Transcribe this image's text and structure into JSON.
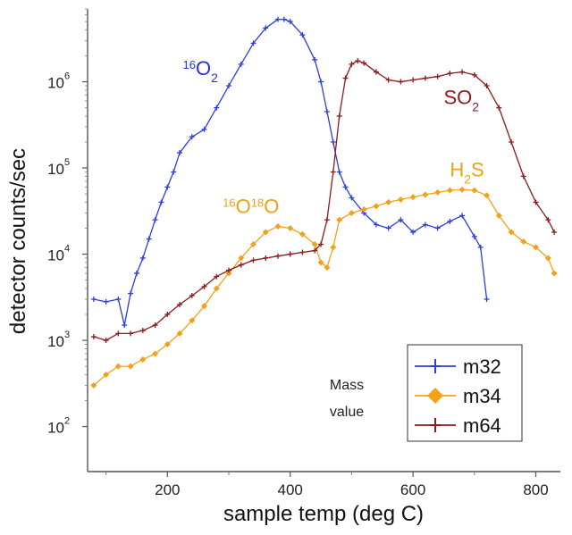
{
  "chart_data": {
    "type": "line",
    "title": "",
    "xlabel": "sample temp (deg C)",
    "ylabel": "detector counts/sec",
    "xlim": [
      70,
      840
    ],
    "ylim": [
      30,
      7000000
    ],
    "yscale": "log",
    "x_ticks": [
      200,
      400,
      600,
      800
    ],
    "x_tick_labels": [
      "200",
      "400",
      "600",
      "800"
    ],
    "y_ticks": [
      100,
      1000,
      10000,
      100000,
      1000000
    ],
    "y_tick_labels": [
      {
        "base": "10",
        "exp": "2"
      },
      {
        "base": "10",
        "exp": "3"
      },
      {
        "base": "10",
        "exp": "4"
      },
      {
        "base": "10",
        "exp": "5"
      },
      {
        "base": "10",
        "exp": "6"
      }
    ],
    "legend": {
      "placement": "bottom-right",
      "entries": [
        {
          "label": "m32",
          "series": "m32"
        },
        {
          "label": "m34",
          "series": "m34"
        },
        {
          "label": "m64",
          "series": "m64"
        }
      ]
    },
    "annotations": [
      {
        "text": "Mass",
        "x": 390,
        "y": 450
      },
      {
        "text": "value",
        "x": 390,
        "y": 150
      }
    ],
    "species_labels": [
      {
        "parts": [
          {
            "t": "16",
            "s": "sup"
          },
          {
            "t": "O",
            "s": ""
          },
          {
            "t": "2",
            "s": "sub"
          }
        ],
        "color": "#2233dd",
        "x": 225,
        "y": 1200000
      },
      {
        "parts": [
          {
            "t": "SO",
            "s": ""
          },
          {
            "t": "2",
            "s": "sub"
          }
        ],
        "color": "#8b1a1a",
        "x": 650,
        "y": 550000
      },
      {
        "parts": [
          {
            "t": "H",
            "s": ""
          },
          {
            "t": "2",
            "s": "sub"
          },
          {
            "t": "S",
            "s": ""
          }
        ],
        "color": "#f0a010",
        "x": 660,
        "y": 80000
      },
      {
        "parts": [
          {
            "t": "16",
            "s": "sup"
          },
          {
            "t": "O",
            "s": ""
          },
          {
            "t": "18",
            "s": "sup"
          },
          {
            "t": "O",
            "s": ""
          }
        ],
        "color": "#f0a010",
        "x": 290,
        "y": 30000
      }
    ],
    "series": [
      {
        "name": "m32",
        "color": "#2a3fe0",
        "marker": "plus",
        "x": [
          80,
          100,
          120,
          130,
          140,
          150,
          160,
          170,
          180,
          190,
          200,
          210,
          220,
          240,
          260,
          280,
          300,
          320,
          340,
          360,
          380,
          390,
          400,
          420,
          440,
          450,
          460,
          470,
          480,
          490,
          500,
          520,
          540,
          560,
          580,
          600,
          620,
          640,
          660,
          680,
          700,
          710,
          720
        ],
        "y": [
          3000,
          2800,
          3000,
          1500,
          3500,
          6000,
          9000,
          15000,
          25000,
          40000,
          60000,
          90000,
          150000,
          230000,
          280000,
          500000,
          900000,
          1600000,
          2800000,
          4200000,
          5300000,
          5300000,
          5000000,
          3500000,
          1800000,
          1000000,
          450000,
          200000,
          90000,
          60000,
          45000,
          30000,
          22000,
          20000,
          25000,
          18000,
          22000,
          20000,
          24000,
          28000,
          16000,
          12000,
          3000
        ]
      },
      {
        "name": "m34",
        "color": "#f5a01a",
        "marker": "diamond",
        "x": [
          80,
          100,
          120,
          140,
          160,
          180,
          200,
          220,
          240,
          260,
          280,
          300,
          320,
          340,
          360,
          380,
          400,
          420,
          440,
          450,
          460,
          470,
          480,
          500,
          520,
          540,
          560,
          580,
          600,
          620,
          640,
          660,
          680,
          700,
          720,
          740,
          760,
          780,
          800,
          820,
          830
        ],
        "y": [
          300,
          400,
          500,
          500,
          600,
          700,
          900,
          1200,
          1700,
          2500,
          4000,
          6000,
          9000,
          13000,
          18000,
          21000,
          20000,
          17000,
          13000,
          8000,
          7000,
          12000,
          25000,
          30000,
          33000,
          36000,
          40000,
          43000,
          46000,
          49000,
          52000,
          55000,
          56000,
          55000,
          48000,
          28000,
          18000,
          14000,
          12000,
          9000,
          6000
        ]
      },
      {
        "name": "m64",
        "color": "#8e1a1a",
        "marker": "plus",
        "x": [
          80,
          100,
          120,
          140,
          160,
          180,
          200,
          220,
          240,
          260,
          280,
          300,
          320,
          340,
          360,
          380,
          400,
          420,
          440,
          450,
          460,
          470,
          480,
          490,
          500,
          510,
          520,
          540,
          560,
          580,
          600,
          620,
          640,
          660,
          680,
          700,
          720,
          740,
          760,
          780,
          800,
          820,
          830
        ],
        "y": [
          1100,
          1000,
          1200,
          1200,
          1300,
          1500,
          2000,
          2600,
          3300,
          4200,
          5500,
          6500,
          7500,
          8500,
          9000,
          9500,
          10000,
          10500,
          11000,
          13000,
          25000,
          90000,
          400000,
          1100000,
          1600000,
          1750000,
          1650000,
          1300000,
          1050000,
          1000000,
          1050000,
          1100000,
          1150000,
          1250000,
          1300000,
          1200000,
          900000,
          500000,
          200000,
          80000,
          40000,
          25000,
          18000
        ]
      }
    ]
  }
}
